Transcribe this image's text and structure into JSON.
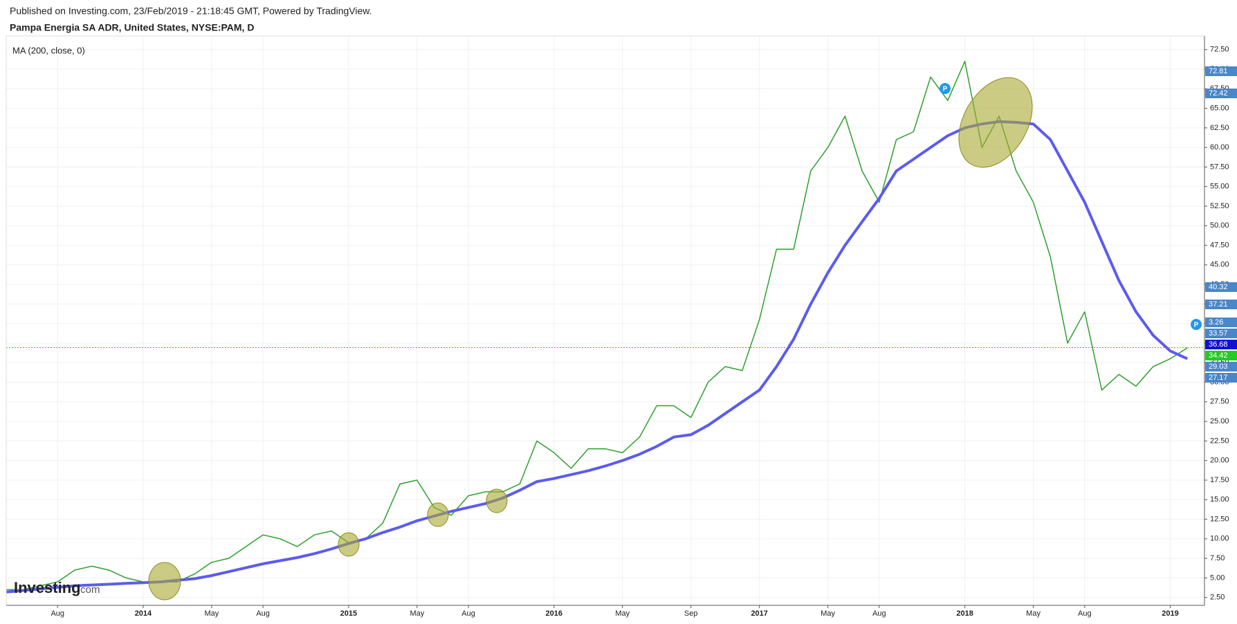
{
  "header": "Published on Investing.com, 23/Feb/2019 - 21:18:45 GMT, Powered by TradingView.",
  "watermark": "Investing",
  "watermark_suffix": ".com",
  "chart_data": {
    "type": "line",
    "title": "Pampa Energia SA ADR, United States, NYSE:PAM, D",
    "x": [
      "2013-05",
      "2013-06",
      "2013-07",
      "2013-08",
      "2013-09",
      "2013-10",
      "2013-11",
      "2013-12",
      "2014-01",
      "2014-02",
      "2014-03",
      "2014-04",
      "2014-05",
      "2014-06",
      "2014-07",
      "2014-08",
      "2014-09",
      "2014-10",
      "2014-11",
      "2014-12",
      "2015-01",
      "2015-02",
      "2015-03",
      "2015-04",
      "2015-05",
      "2015-06",
      "2015-07",
      "2015-08",
      "2015-09",
      "2015-10",
      "2015-11",
      "2015-12",
      "2016-01",
      "2016-02",
      "2016-03",
      "2016-04",
      "2016-05",
      "2016-06",
      "2016-07",
      "2016-08",
      "2016-09",
      "2016-10",
      "2016-11",
      "2016-12",
      "2017-01",
      "2017-02",
      "2017-03",
      "2017-04",
      "2017-05",
      "2017-06",
      "2017-07",
      "2017-08",
      "2017-09",
      "2017-10",
      "2017-11",
      "2017-12",
      "2018-01",
      "2018-02",
      "2018-03",
      "2018-04",
      "2018-05",
      "2018-06",
      "2018-07",
      "2018-08",
      "2018-09",
      "2018-10",
      "2018-11",
      "2018-12",
      "2019-01",
      "2019-02"
    ],
    "series": [
      {
        "color": "#2ca02c",
        "values": [
          3.5,
          3.5,
          4,
          4.5,
          6,
          6.5,
          6,
          5,
          4.5,
          4.5,
          4.5,
          5.5,
          7,
          7.5,
          9,
          10.5,
          10,
          9,
          10.5,
          11,
          9.5,
          10,
          12,
          17,
          17.5,
          14,
          13,
          15.5,
          16,
          16,
          17,
          22.5,
          21,
          19,
          21.5,
          21.5,
          21,
          23,
          27,
          27,
          25.5,
          30,
          32,
          31.5,
          38,
          47,
          47,
          57,
          60,
          64,
          57,
          53,
          61,
          62,
          69,
          66,
          71,
          60,
          64,
          57,
          53,
          46,
          35,
          39,
          29,
          31,
          29.5,
          32,
          33,
          34.4
        ]
      },
      {
        "name": "MA (200, close, 0)",
        "color": "#5b5bf0",
        "values": [
          3.2,
          3.4,
          3.6,
          3.8,
          4,
          4.1,
          4.2,
          4.3,
          4.4,
          4.5,
          4.7,
          4.9,
          5.3,
          5.8,
          6.3,
          6.8,
          7.2,
          7.6,
          8.1,
          8.7,
          9.4,
          10,
          10.8,
          11.5,
          12.3,
          12.9,
          13.5,
          14,
          14.5,
          15.2,
          16.2,
          17.3,
          17.7,
          18.2,
          18.7,
          19.3,
          20,
          20.8,
          21.8,
          23,
          23.3,
          24.5,
          26,
          27.5,
          29,
          32,
          35.5,
          40,
          44,
          47.5,
          50.5,
          53.5,
          57,
          58.5,
          60,
          61.5,
          62.5,
          63,
          63.3,
          63.2,
          63,
          61,
          57,
          53,
          48,
          43,
          39,
          36,
          34,
          33
        ]
      }
    ],
    "last_price": 34.42,
    "last_price_color": "#22cc22",
    "price_tags": [
      {
        "label": "72.81",
        "color": "#4a86c8"
      },
      {
        "label": "72.42",
        "color": "#4a86c8"
      },
      {
        "label": "40.32",
        "color": "#4a86c8"
      },
      {
        "label": "37.21",
        "color": "#4a86c8"
      },
      {
        "label": "3.26",
        "color": "#4a86c8"
      },
      {
        "label": "33.57",
        "color": "#4a86c8"
      },
      {
        "label": "36.68",
        "color": "#1010d0"
      },
      {
        "label": "34.42",
        "color": "#22cc22"
      },
      {
        "label": "29.03",
        "color": "#4a86c8"
      },
      {
        "label": "27.17",
        "color": "#4a86c8"
      }
    ],
    "xlim": [
      "2013-05",
      "2019-03"
    ],
    "xticks": [
      {
        "value": "2013-08",
        "label": "Aug"
      },
      {
        "value": "2014-01",
        "label": "2014"
      },
      {
        "value": "2014-05",
        "label": "May"
      },
      {
        "value": "2014-08",
        "label": "Aug"
      },
      {
        "value": "2015-01",
        "label": "2015"
      },
      {
        "value": "2015-05",
        "label": "May"
      },
      {
        "value": "2015-08",
        "label": "Aug"
      },
      {
        "value": "2016-01",
        "label": "2016"
      },
      {
        "value": "2016-05",
        "label": "May"
      },
      {
        "value": "2016-09",
        "label": "Sep"
      },
      {
        "value": "2017-01",
        "label": "2017"
      },
      {
        "value": "2017-05",
        "label": "May"
      },
      {
        "value": "2017-08",
        "label": "Aug"
      },
      {
        "value": "2018-01",
        "label": "2018"
      },
      {
        "value": "2018-05",
        "label": "May"
      },
      {
        "value": "2018-08",
        "label": "Aug"
      },
      {
        "value": "2019-01",
        "label": "2019"
      }
    ],
    "ylim": [
      1.5,
      73.8
    ],
    "yticks": [
      {
        "value": 2.5,
        "label": "2.50"
      },
      {
        "value": 5,
        "label": "5.00"
      },
      {
        "value": 7.5,
        "label": "7.50"
      },
      {
        "value": 10,
        "label": "10.00"
      },
      {
        "value": 12.5,
        "label": "12.50"
      },
      {
        "value": 15,
        "label": "15.00"
      },
      {
        "value": 17.5,
        "label": "17.50"
      },
      {
        "value": 20,
        "label": "20.00"
      },
      {
        "value": 22.5,
        "label": "22.50"
      },
      {
        "value": 25,
        "label": "25.00"
      },
      {
        "value": 27.5,
        "label": "27.50"
      },
      {
        "value": 30,
        "label": "30.00"
      },
      {
        "value": 32.5,
        "label": "32.50"
      },
      {
        "value": 35,
        "label": "35.00"
      },
      {
        "value": 37.5,
        "label": "37.50"
      },
      {
        "value": 40,
        "label": "40.00"
      },
      {
        "value": 42.5,
        "label": "42.50"
      },
      {
        "value": 45,
        "label": "45.00"
      },
      {
        "value": 47.5,
        "label": "47.50"
      },
      {
        "value": 50,
        "label": "50.00"
      },
      {
        "value": 52.5,
        "label": "52.50"
      },
      {
        "value": 55,
        "label": "55.00"
      },
      {
        "value": 57.5,
        "label": "57.50"
      },
      {
        "value": 60,
        "label": "60.00"
      },
      {
        "value": 62.5,
        "label": "62.50"
      },
      {
        "value": 65,
        "label": "65.00"
      },
      {
        "value": 67.5,
        "label": "67.50"
      },
      {
        "value": 70,
        "label": "70.00"
      },
      {
        "value": 72.5,
        "label": "72.50"
      }
    ],
    "grid": true
  }
}
